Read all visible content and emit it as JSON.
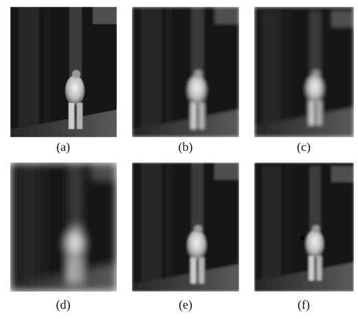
{
  "panels": [
    {
      "label": "(a)"
    },
    {
      "label": "(b)"
    },
    {
      "label": "(c)"
    },
    {
      "label": "(d)"
    },
    {
      "label": "(e)"
    },
    {
      "label": "(f)"
    }
  ]
}
